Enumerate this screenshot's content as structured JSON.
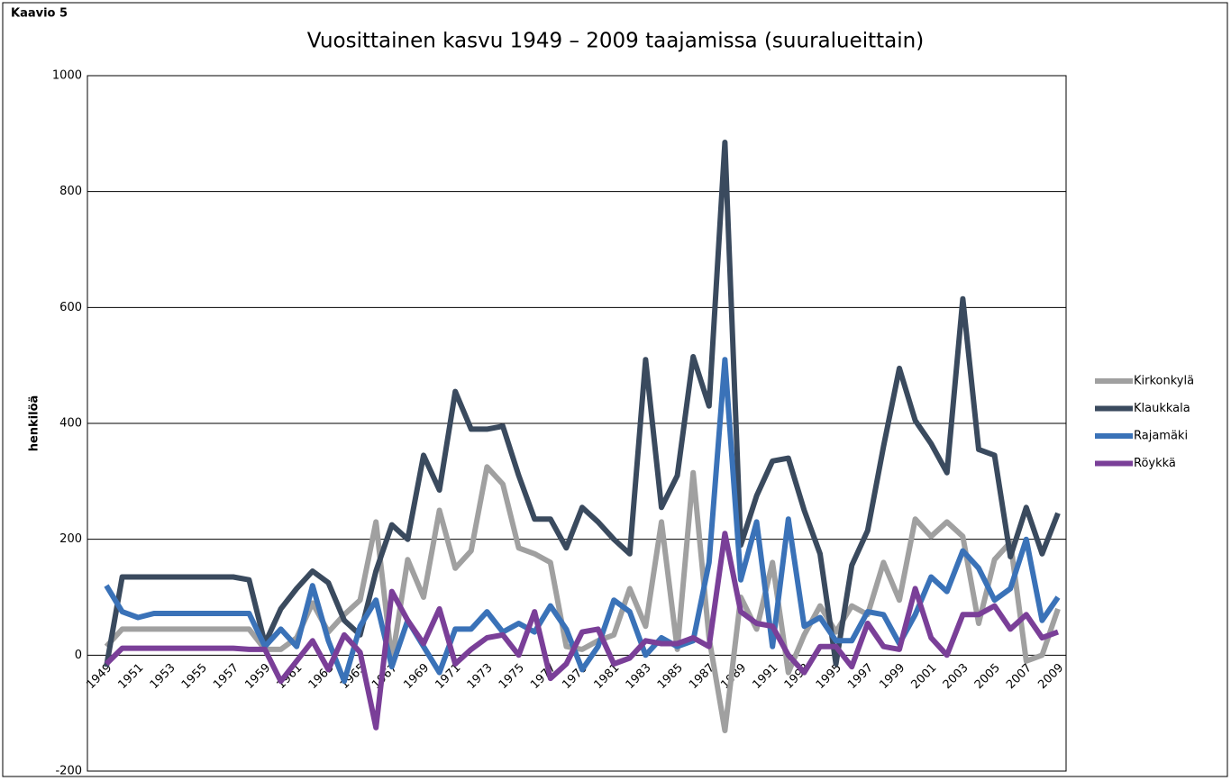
{
  "chart_data": {
    "type": "line",
    "label": "Kaavio 5",
    "title": "Vuosittainen kasvu 1949 – 2009 taajamissa (suuralueittain)",
    "y_label": "henkilöä",
    "categories": [
      "1949",
      null,
      "1951",
      null,
      "1953",
      null,
      "1955",
      null,
      "1957",
      null,
      "1959",
      null,
      "1961",
      null,
      "1963",
      null,
      "1965",
      null,
      "1967",
      null,
      "1969",
      null,
      "1971",
      null,
      "1973",
      null,
      "1975",
      null,
      "1977",
      null,
      "1979",
      null,
      "1981",
      null,
      "1983",
      null,
      "1985",
      null,
      "1987",
      null,
      "1989",
      null,
      "1991",
      null,
      "1993",
      null,
      "1995",
      null,
      "1997",
      null,
      "1999",
      null,
      "2001",
      null,
      "2003",
      null,
      "2005",
      null,
      "2007",
      null,
      "2009"
    ],
    "series": [
      {
        "name": "Kirkonkylä",
        "color": "#a0a0a0",
        "values": [
          15,
          45,
          45,
          45,
          45,
          45,
          45,
          45,
          45,
          45,
          10,
          10,
          30,
          90,
          40,
          70,
          95,
          230,
          -10,
          165,
          100,
          250,
          150,
          180,
          325,
          295,
          185,
          175,
          160,
          15,
          10,
          25,
          35,
          115,
          50,
          230,
          10,
          315,
          30,
          -130,
          100,
          45,
          160,
          -30,
          35,
          85,
          40,
          85,
          70,
          160,
          95,
          235,
          205,
          230,
          205,
          55,
          165,
          195,
          -10,
          0,
          80
        ]
      },
      {
        "name": "Klaukkala",
        "color": "#3a4a5e",
        "values": [
          -20,
          135,
          135,
          135,
          135,
          135,
          135,
          135,
          135,
          130,
          20,
          80,
          115,
          145,
          125,
          60,
          35,
          145,
          225,
          200,
          345,
          285,
          455,
          390,
          390,
          395,
          310,
          235,
          235,
          185,
          255,
          230,
          200,
          175,
          510,
          255,
          310,
          515,
          430,
          885,
          190,
          275,
          335,
          340,
          250,
          175,
          -15,
          155,
          215,
          360,
          495,
          405,
          365,
          315,
          615,
          355,
          345,
          170,
          255,
          175,
          245
        ]
      },
      {
        "name": "Rajamäki",
        "color": "#3a72b8",
        "values": [
          120,
          75,
          65,
          72,
          72,
          72,
          72,
          72,
          72,
          72,
          15,
          45,
          15,
          120,
          25,
          -45,
          50,
          95,
          -20,
          60,
          15,
          -30,
          45,
          45,
          75,
          40,
          55,
          40,
          85,
          45,
          -25,
          15,
          95,
          75,
          0,
          30,
          15,
          25,
          160,
          510,
          130,
          230,
          15,
          235,
          50,
          65,
          25,
          25,
          75,
          70,
          20,
          70,
          135,
          110,
          180,
          150,
          95,
          115,
          200,
          60,
          100
        ]
      },
      {
        "name": "Röykkä",
        "color": "#7a3f98",
        "values": [
          -15,
          12,
          12,
          12,
          12,
          12,
          12,
          12,
          12,
          10,
          10,
          -45,
          -10,
          25,
          -25,
          35,
          5,
          -125,
          110,
          60,
          20,
          80,
          -15,
          10,
          30,
          35,
          0,
          75,
          -40,
          -15,
          40,
          45,
          -15,
          -5,
          25,
          20,
          20,
          30,
          15,
          210,
          75,
          55,
          50,
          0,
          -30,
          15,
          15,
          -20,
          55,
          15,
          10,
          115,
          30,
          0,
          70,
          70,
          85,
          45,
          70,
          30,
          40
        ]
      }
    ],
    "ylim": [
      -200,
      1000
    ],
    "yticks": [
      -200,
      0,
      200,
      400,
      600,
      800,
      1000
    ],
    "grid": true,
    "legend": "right"
  }
}
